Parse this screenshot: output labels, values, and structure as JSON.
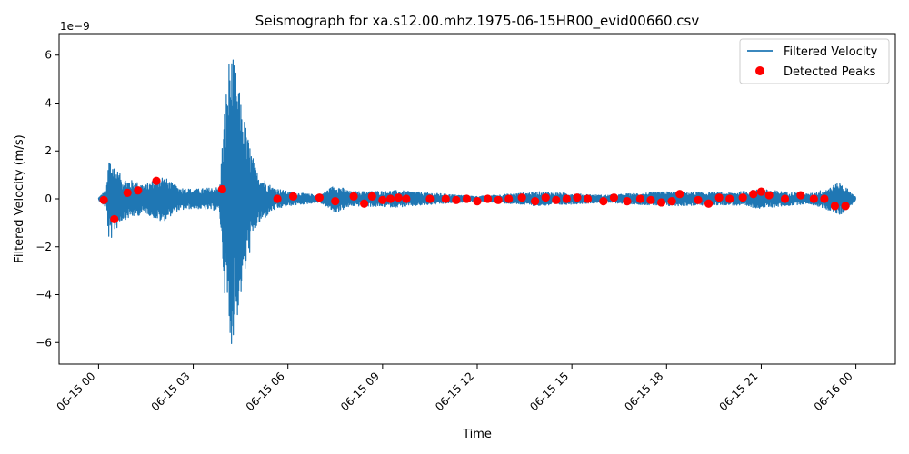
{
  "chart_data": {
    "type": "line",
    "title": "Seismograph for xa.s12.00.mhz.1975-06-15HR00_evid00660.csv",
    "xlabel": "Time",
    "ylabel": "Filtered Velocity (m/s)",
    "y_scale_label": "1e−9",
    "y_multiplier": 1e-09,
    "xlim": [
      "1975-06-14 22:45",
      "1975-06-16 01:15"
    ],
    "ylim": [
      -6.9,
      6.9
    ],
    "x_ticks": [
      {
        "t": "1975-06-15 00:00",
        "label": "06-15 00"
      },
      {
        "t": "1975-06-15 03:00",
        "label": "06-15 03"
      },
      {
        "t": "1975-06-15 06:00",
        "label": "06-15 06"
      },
      {
        "t": "1975-06-15 09:00",
        "label": "06-15 09"
      },
      {
        "t": "1975-06-15 12:00",
        "label": "06-15 12"
      },
      {
        "t": "1975-06-15 15:00",
        "label": "06-15 15"
      },
      {
        "t": "1975-06-15 18:00",
        "label": "06-15 18"
      },
      {
        "t": "1975-06-15 21:00",
        "label": "06-15 21"
      },
      {
        "t": "1975-06-16 00:00",
        "label": "06-16 00"
      }
    ],
    "y_ticks": [
      {
        "v": -6,
        "label": "−6"
      },
      {
        "v": -4,
        "label": "−4"
      },
      {
        "v": -2,
        "label": "−2"
      },
      {
        "v": 0,
        "label": "0"
      },
      {
        "v": 2,
        "label": "2"
      },
      {
        "v": 4,
        "label": "4"
      },
      {
        "v": 6,
        "label": "6"
      }
    ],
    "grid": false,
    "legend_position": "top-right",
    "series": [
      {
        "name": "Filtered Velocity",
        "kind": "line",
        "color": "#1f77b4",
        "envelope": [
          [
            "1975-06-15 00:00",
            0.05
          ],
          [
            "1975-06-15 00:15",
            0.4
          ],
          [
            "1975-06-15 00:20",
            1.9
          ],
          [
            "1975-06-15 00:30",
            1.4
          ],
          [
            "1975-06-15 00:45",
            0.9
          ],
          [
            "1975-06-15 01:30",
            0.6
          ],
          [
            "1975-06-15 02:00",
            1.0
          ],
          [
            "1975-06-15 02:30",
            0.5
          ],
          [
            "1975-06-15 03:00",
            0.4
          ],
          [
            "1975-06-15 03:50",
            0.5
          ],
          [
            "1975-06-15 04:00",
            4.0
          ],
          [
            "1975-06-15 04:10",
            6.3
          ],
          [
            "1975-06-15 04:20",
            5.5
          ],
          [
            "1975-06-15 04:30",
            4.2
          ],
          [
            "1975-06-15 04:45",
            2.5
          ],
          [
            "1975-06-15 05:00",
            1.2
          ],
          [
            "1975-06-15 05:30",
            0.5
          ],
          [
            "1975-06-15 06:00",
            0.3
          ],
          [
            "1975-06-15 07:00",
            0.15
          ],
          [
            "1975-06-15 07:30",
            0.6
          ],
          [
            "1975-06-15 08:00",
            0.3
          ],
          [
            "1975-06-15 09:30",
            0.35
          ],
          [
            "1975-06-15 10:00",
            0.3
          ],
          [
            "1975-06-15 12:00",
            0.1
          ],
          [
            "1975-06-15 14:00",
            0.3
          ],
          [
            "1975-06-15 16:00",
            0.15
          ],
          [
            "1975-06-15 18:00",
            0.3
          ],
          [
            "1975-06-15 20:00",
            0.25
          ],
          [
            "1975-06-15 21:00",
            0.4
          ],
          [
            "1975-06-15 22:30",
            0.2
          ],
          [
            "1975-06-15 23:00",
            0.4
          ],
          [
            "1975-06-15 23:30",
            0.7
          ],
          [
            "1975-06-15 23:55",
            0.2
          ],
          [
            "1975-06-16 00:00",
            0.05
          ]
        ]
      },
      {
        "name": "Detected Peaks",
        "kind": "scatter",
        "color": "#ff0000",
        "points": [
          [
            "1975-06-15 00:10",
            -0.05
          ],
          [
            "1975-06-15 00:30",
            -0.85
          ],
          [
            "1975-06-15 00:55",
            0.25
          ],
          [
            "1975-06-15 01:15",
            0.35
          ],
          [
            "1975-06-15 01:50",
            0.75
          ],
          [
            "1975-06-15 03:55",
            0.4
          ],
          [
            "1975-06-15 05:40",
            0.0
          ],
          [
            "1975-06-15 06:10",
            0.1
          ],
          [
            "1975-06-15 07:00",
            0.05
          ],
          [
            "1975-06-15 07:30",
            -0.1
          ],
          [
            "1975-06-15 08:05",
            0.1
          ],
          [
            "1975-06-15 08:25",
            -0.2
          ],
          [
            "1975-06-15 08:40",
            0.1
          ],
          [
            "1975-06-15 09:00",
            -0.05
          ],
          [
            "1975-06-15 09:15",
            0.0
          ],
          [
            "1975-06-15 09:30",
            0.05
          ],
          [
            "1975-06-15 09:45",
            0.0
          ],
          [
            "1975-06-15 10:30",
            0.0
          ],
          [
            "1975-06-15 11:00",
            0.0
          ],
          [
            "1975-06-15 11:20",
            -0.05
          ],
          [
            "1975-06-15 11:40",
            0.0
          ],
          [
            "1975-06-15 12:00",
            -0.1
          ],
          [
            "1975-06-15 12:20",
            0.0
          ],
          [
            "1975-06-15 12:40",
            -0.05
          ],
          [
            "1975-06-15 13:00",
            0.0
          ],
          [
            "1975-06-15 13:25",
            0.05
          ],
          [
            "1975-06-15 13:50",
            -0.1
          ],
          [
            "1975-06-15 14:10",
            0.05
          ],
          [
            "1975-06-15 14:30",
            -0.05
          ],
          [
            "1975-06-15 14:50",
            0.0
          ],
          [
            "1975-06-15 15:10",
            0.05
          ],
          [
            "1975-06-15 15:30",
            0.0
          ],
          [
            "1975-06-15 16:00",
            -0.1
          ],
          [
            "1975-06-15 16:20",
            0.05
          ],
          [
            "1975-06-15 16:45",
            -0.1
          ],
          [
            "1975-06-15 17:10",
            0.0
          ],
          [
            "1975-06-15 17:30",
            -0.05
          ],
          [
            "1975-06-15 17:50",
            -0.15
          ],
          [
            "1975-06-15 18:10",
            -0.1
          ],
          [
            "1975-06-15 18:25",
            0.2
          ],
          [
            "1975-06-15 19:00",
            -0.05
          ],
          [
            "1975-06-15 19:20",
            -0.2
          ],
          [
            "1975-06-15 19:40",
            0.05
          ],
          [
            "1975-06-15 20:00",
            0.0
          ],
          [
            "1975-06-15 20:25",
            0.05
          ],
          [
            "1975-06-15 20:45",
            0.2
          ],
          [
            "1975-06-15 21:00",
            0.3
          ],
          [
            "1975-06-15 21:15",
            0.15
          ],
          [
            "1975-06-15 21:45",
            0.0
          ],
          [
            "1975-06-15 22:15",
            0.15
          ],
          [
            "1975-06-15 22:40",
            0.0
          ],
          [
            "1975-06-15 23:00",
            0.0
          ],
          [
            "1975-06-15 23:20",
            -0.3
          ],
          [
            "1975-06-15 23:40",
            -0.3
          ]
        ]
      }
    ]
  }
}
